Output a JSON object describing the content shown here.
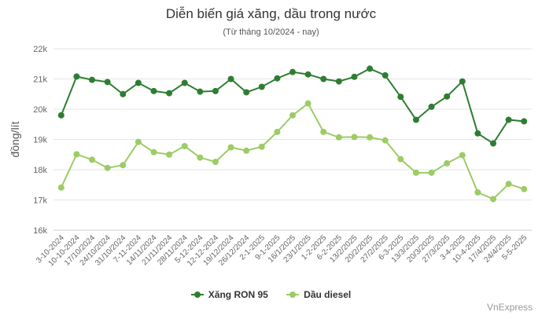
{
  "chart_data": {
    "type": "line",
    "title": "Diễn biến giá xăng, dầu trong nước",
    "subtitle": "(Từ tháng 10/2024 - nay)",
    "ylabel": "đồng/lít",
    "ylim": [
      16000,
      22000
    ],
    "yticks": [
      16000,
      17000,
      18000,
      19000,
      20000,
      21000,
      22000
    ],
    "ytick_labels": [
      "16k",
      "17k",
      "18k",
      "19k",
      "20k",
      "21k",
      "22k"
    ],
    "grid": true,
    "legend_position": "bottom",
    "categories": [
      "3-10-2024",
      "10-10-2024",
      "17/10/2024",
      "24/10/2024",
      "31/10/2024",
      "7-11-2024",
      "14/11/2024",
      "21/11/2024",
      "28/11/2024",
      "5-12-2024",
      "12-12-2024",
      "19/12/2024",
      "26/12/2024",
      "2-1-2025",
      "9-1-2025",
      "16/1/2025",
      "23/1/2025",
      "1-2-2025",
      "6-2-2025",
      "13/2/2025",
      "20/2/2025",
      "27/2/2025",
      "6-3-2025",
      "13/3/2025",
      "20/3/2025",
      "27/3/2025",
      "3-4-2025",
      "10-4-2025",
      "17/4/2025",
      "24/4/2025",
      "5-5-2025"
    ],
    "series": [
      {
        "name": "Xăng RON 95",
        "color": "#2e7d32",
        "values": [
          19800,
          21080,
          20970,
          20900,
          20500,
          20870,
          20600,
          20530,
          20870,
          20580,
          20600,
          21000,
          20560,
          20740,
          21020,
          21230,
          21150,
          21000,
          20920,
          21070,
          21340,
          21120,
          20410,
          19650,
          20080,
          20420,
          20920,
          19200,
          18870,
          19650,
          19600
        ]
      },
      {
        "name": "Dầu diesel",
        "color": "#9ccc65",
        "values": [
          17410,
          18510,
          18330,
          18060,
          18150,
          18920,
          18580,
          18500,
          18780,
          18400,
          18260,
          18740,
          18630,
          18760,
          19250,
          19800,
          20190,
          19250,
          19070,
          19080,
          19070,
          18970,
          18350,
          17900,
          17900,
          18210,
          18480,
          17250,
          17030,
          17530,
          17360
        ]
      }
    ]
  },
  "credit": "VnExpress"
}
